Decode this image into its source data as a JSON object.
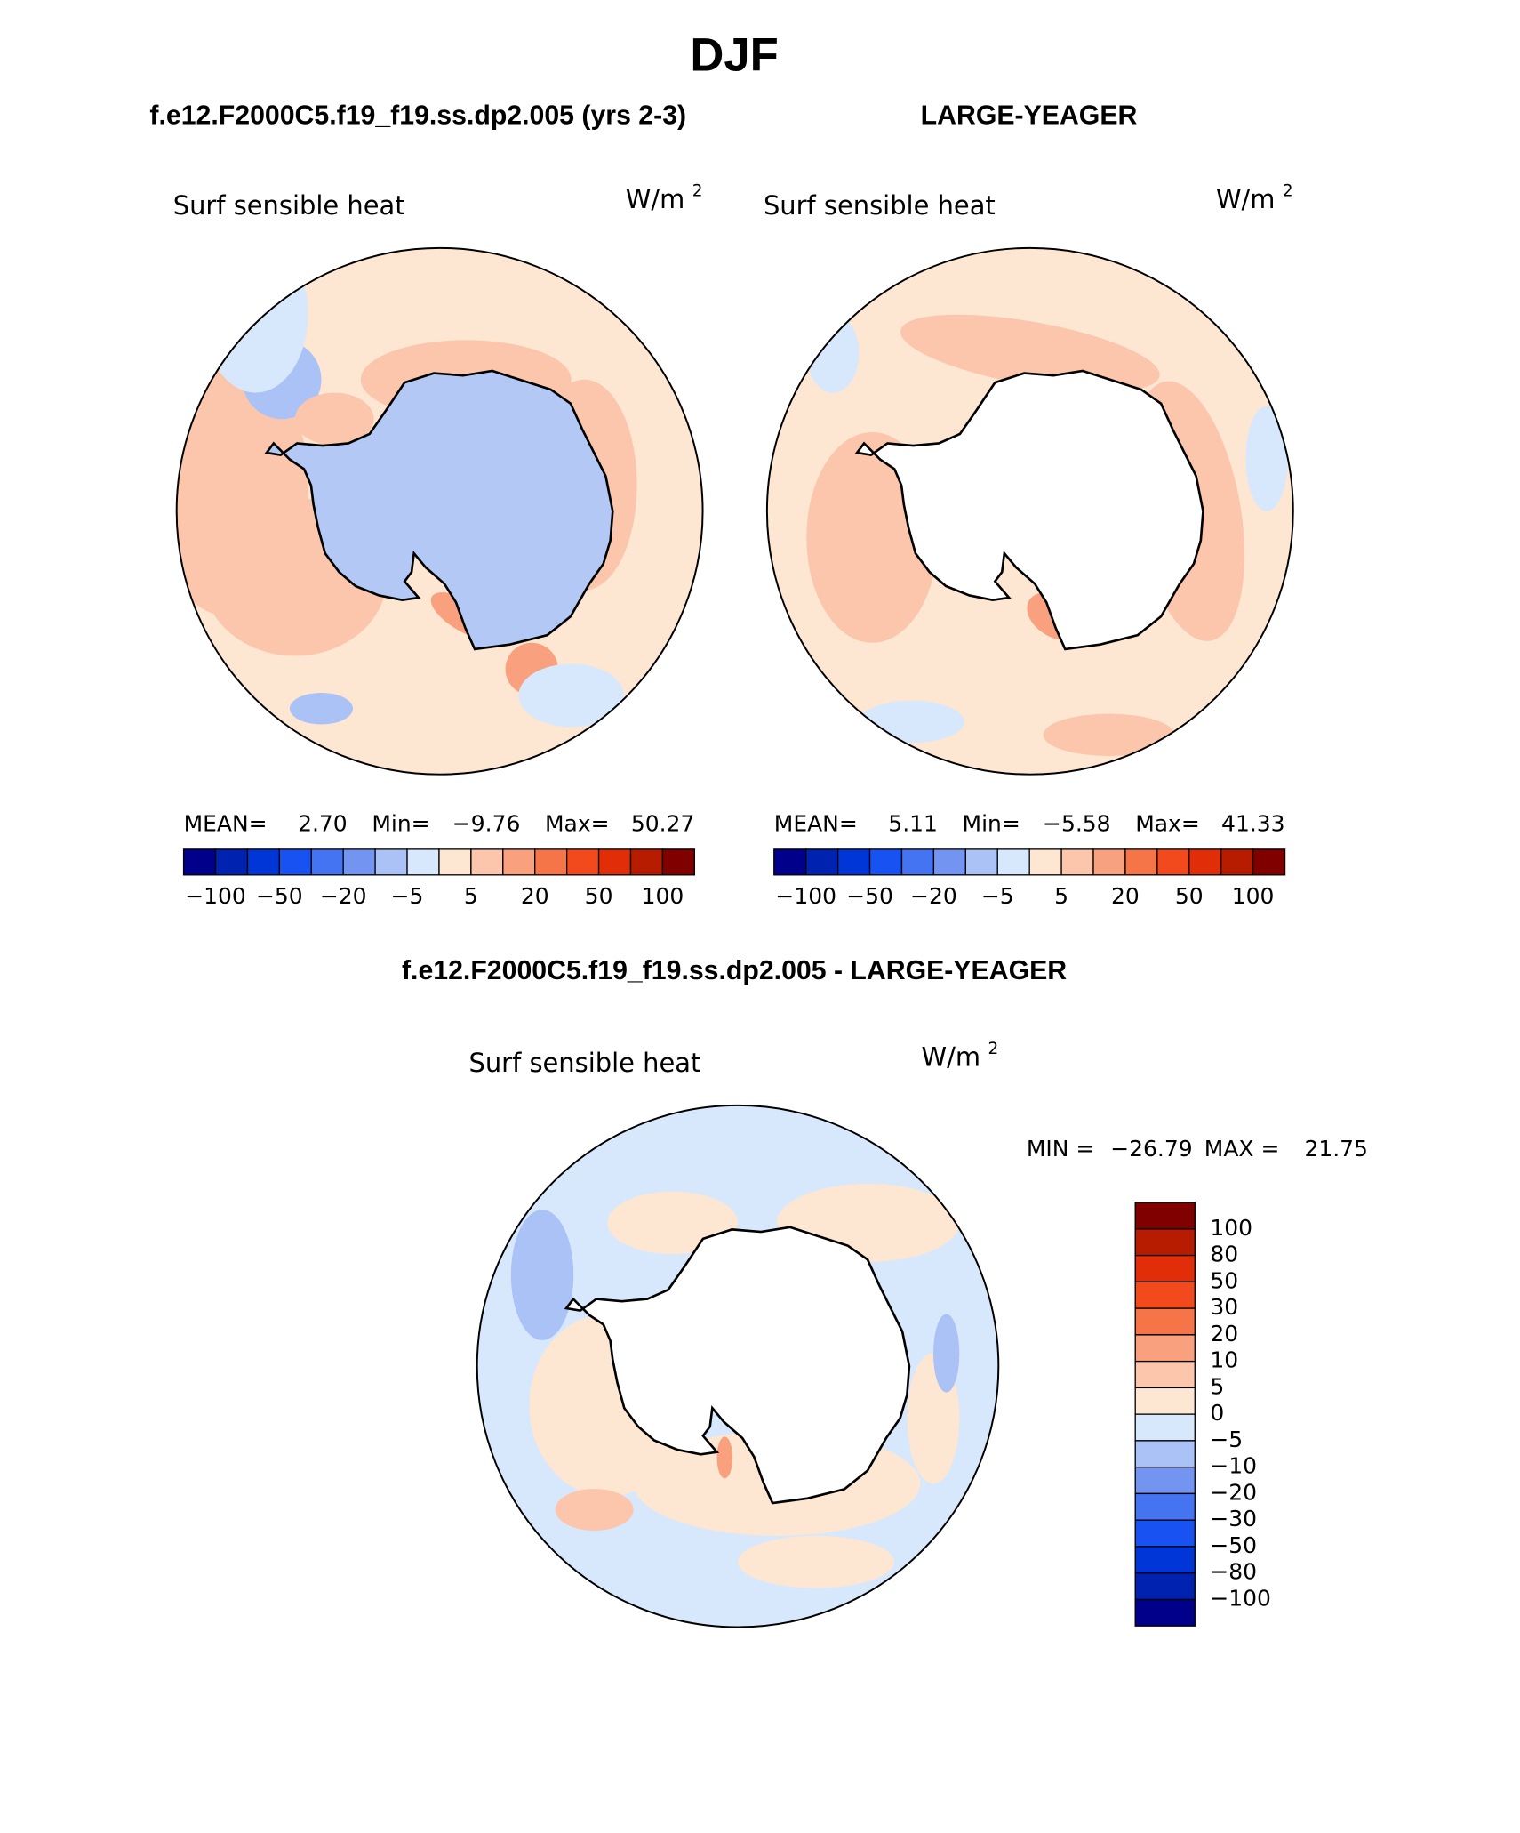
{
  "title": "DJF",
  "panels": [
    {
      "heading": "f.e12.F2000C5.f19_f19.ss.dp2.005 (yrs 2-3)",
      "variable": "Surf sensible heat",
      "units": "W/m",
      "units_exp": "2",
      "stats": [
        {
          "label": "MEAN=",
          "value": "2.70"
        },
        {
          "label": "Min=",
          "value": "−9.76"
        },
        {
          "label": "Max=",
          "value": "50.27"
        }
      ],
      "land": "#b4c8f6"
    },
    {
      "heading": "LARGE-YEAGER",
      "variable": "Surf sensible heat",
      "units": "W/m",
      "units_exp": "2",
      "stats": [
        {
          "label": "MEAN=",
          "value": "5.11"
        },
        {
          "label": "Min=",
          "value": "−5.58"
        },
        {
          "label": "Max=",
          "value": "41.33"
        }
      ],
      "land": "#ffffff"
    }
  ],
  "colorbar": {
    "labels": [
      "−100",
      "−50",
      "−20",
      "−5",
      "5",
      "20",
      "50",
      "100"
    ],
    "colors": [
      "#00008b",
      "#0022b0",
      "#0036d8",
      "#1852f2",
      "#4474f2",
      "#7494f2",
      "#aac2f6",
      "#d8e8fc",
      "#fde6d2",
      "#fcc6ac",
      "#f9a07e",
      "#f57448",
      "#f24a1c",
      "#e22e08",
      "#b81c00",
      "#800000"
    ]
  },
  "difference": {
    "heading": "f.e12.F2000C5.f19_f19.ss.dp2.005 - LARGE-YEAGER",
    "variable": "Surf sensible heat",
    "units": "W/m",
    "units_exp": "2",
    "stats": [
      {
        "label": "MIN =",
        "value": "−26.79"
      },
      {
        "label": "MAX =",
        "value": "21.75"
      }
    ],
    "colorbar": {
      "labels": [
        "100",
        "80",
        "50",
        "30",
        "20",
        "10",
        "5",
        "0",
        "−5",
        "−10",
        "−20",
        "−30",
        "−50",
        "−80",
        "−100"
      ],
      "colors": [
        "#800000",
        "#b81c00",
        "#e22e08",
        "#f24a1c",
        "#f57448",
        "#f9a07e",
        "#fcc6ac",
        "#fde6d2",
        "#d8e8fc",
        "#aac2f6",
        "#7494f2",
        "#4474f2",
        "#1852f2",
        "#0036d8",
        "#0022b0",
        "#00008b"
      ]
    }
  }
}
